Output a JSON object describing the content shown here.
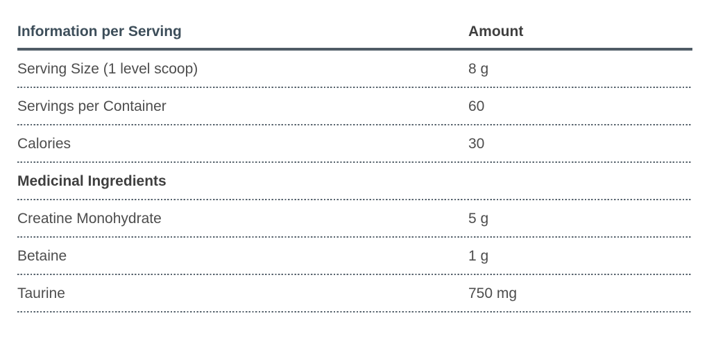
{
  "table": {
    "columns": {
      "info": "Information per Serving",
      "amount": "Amount"
    },
    "rows_top": [
      {
        "label": "Serving Size (1 level scoop)",
        "amount": "8 g"
      },
      {
        "label": "Servings per Container",
        "amount": "60"
      },
      {
        "label": "Calories",
        "amount": "30"
      }
    ],
    "section_header": "Medicinal Ingredients",
    "rows_ingredients": [
      {
        "label": "Creatine Monohydrate",
        "amount": "5 g"
      },
      {
        "label": "Betaine",
        "amount": "1 g"
      },
      {
        "label": "Taurine",
        "amount": "750 mg"
      }
    ],
    "colors": {
      "header_text": "#3d4e5a",
      "amount_header_text": "#3f3f3f",
      "section_header_text": "#3f3f3f",
      "body_text": "#4d4d4d",
      "solid_rule": "#4f5c66",
      "dotted_rule": "#57636d",
      "background": "#ffffff"
    }
  }
}
